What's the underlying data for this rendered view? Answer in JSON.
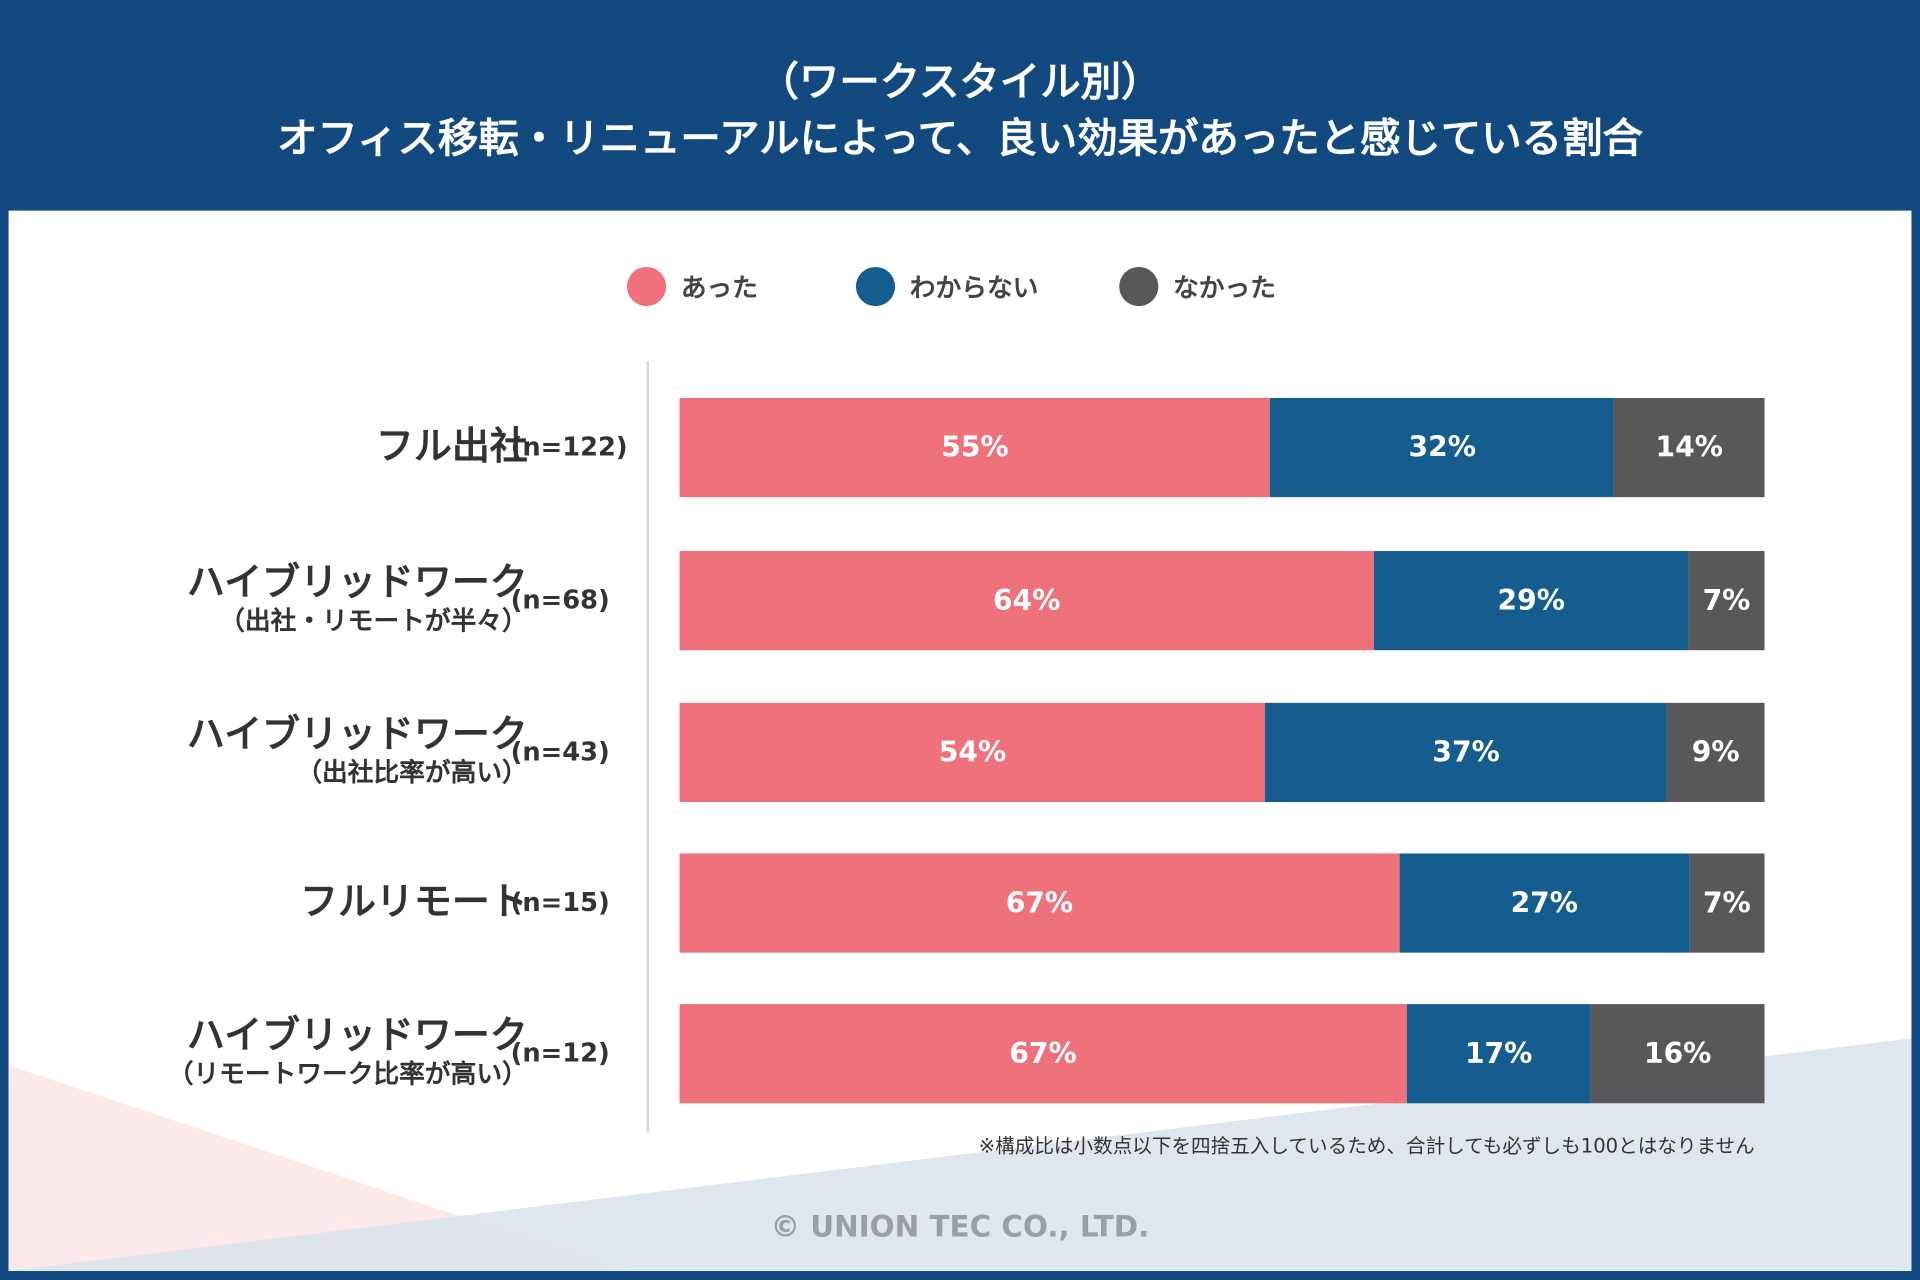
{
  "header": {
    "title_line1": "（ワークスタイル別）",
    "title_line2": "オフィス移転・リニューアルによって、良い効果があったと感じている割合"
  },
  "colors": {
    "header": "#124a80",
    "yes": "#ee717b",
    "unknown": "#155c8f",
    "no": "#58585a"
  },
  "chart_data": {
    "type": "bar",
    "orientation": "horizontal-stacked-100",
    "title": "（ワークスタイル別）オフィス移転・リニューアルによって、良い効果があったと感じている割合",
    "legend_position": "top",
    "categories": [
      {
        "main": "フル出社",
        "sub": "",
        "n": "(n=122)"
      },
      {
        "main": "ハイブリッドワーク",
        "sub": "（出社・リモートが半々）",
        "n": "(n=68)"
      },
      {
        "main": "ハイブリッドワーク",
        "sub": "（出社比率が高い）",
        "n": "(n=43)"
      },
      {
        "main": "フルリモート",
        "sub": "",
        "n": "(n=15)"
      },
      {
        "main": "ハイブリッドワーク",
        "sub": "（リモートワーク比率が高い）",
        "n": "(n=12)"
      }
    ],
    "series": [
      {
        "name": "あった",
        "color": "#ee717b",
        "values": [
          55,
          64,
          54,
          67,
          67
        ]
      },
      {
        "name": "わからない",
        "color": "#155c8f",
        "values": [
          32,
          29,
          37,
          27,
          17
        ]
      },
      {
        "name": "なかった",
        "color": "#58585a",
        "values": [
          14,
          7,
          9,
          7,
          16
        ]
      }
    ],
    "unit": "%",
    "note": "※構成比は小数点以下を四捨五入しているため、合計しても必ずしも100とはなりません"
  },
  "footer": {
    "copyright": "© UNION TEC CO., LTD."
  }
}
